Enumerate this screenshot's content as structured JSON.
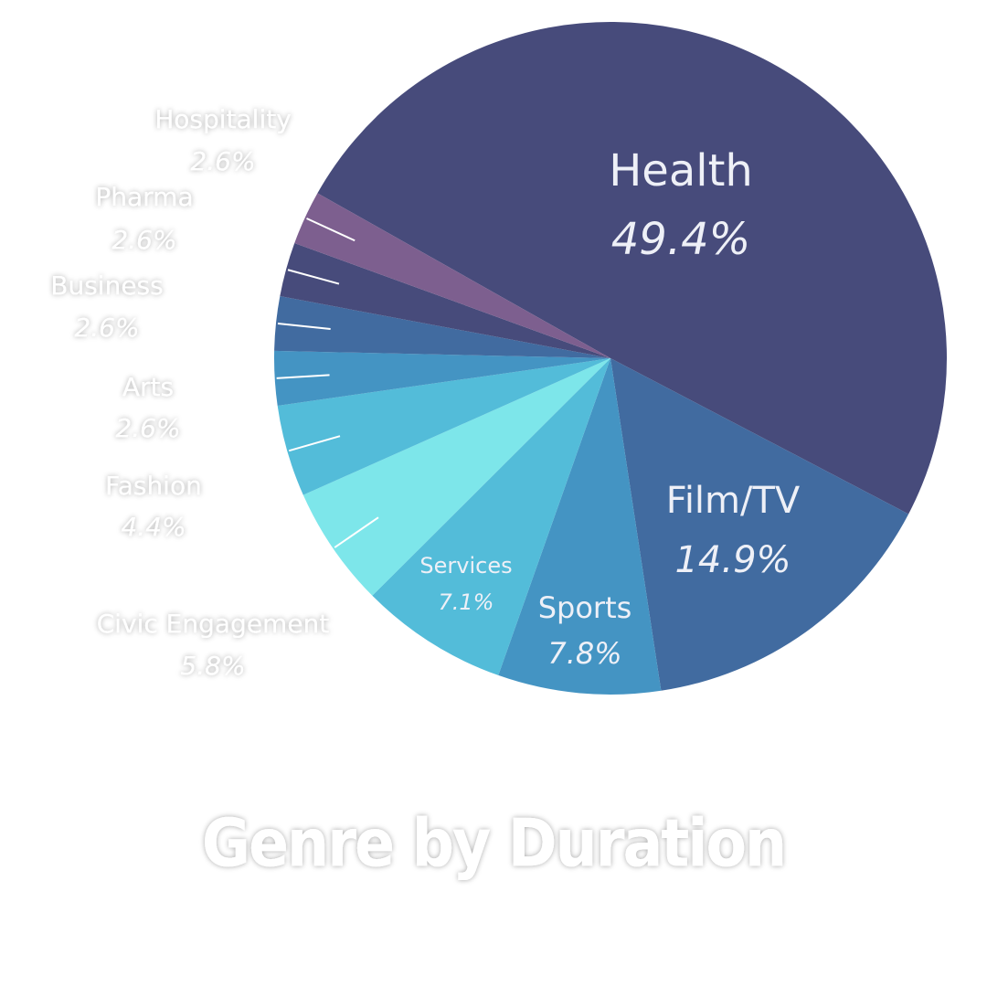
{
  "chart_data": {
    "type": "pie",
    "title": "Genre by Duration",
    "categories": [
      "Health",
      "Film/TV",
      "Sports",
      "Services",
      "Civic Engagement",
      "Fashion",
      "Arts",
      "Business",
      "Pharma",
      "Hospitality"
    ],
    "values": [
      49.4,
      14.9,
      7.8,
      7.1,
      5.8,
      4.4,
      2.6,
      2.6,
      2.6,
      2.6
    ],
    "value_labels": [
      "49.4%",
      "14.9%",
      "7.8%",
      "7.1%",
      "5.8%",
      "4.4%",
      "2.6%",
      "2.6%",
      "2.6%",
      "2.6%"
    ],
    "colors": [
      "#474b7b",
      "#416ba0",
      "#4494c3",
      "#53bcd9",
      "#7de6ea",
      "#53bcd9",
      "#4494c3",
      "#416ba0",
      "#474b7b",
      "#7d5f8f"
    ]
  }
}
